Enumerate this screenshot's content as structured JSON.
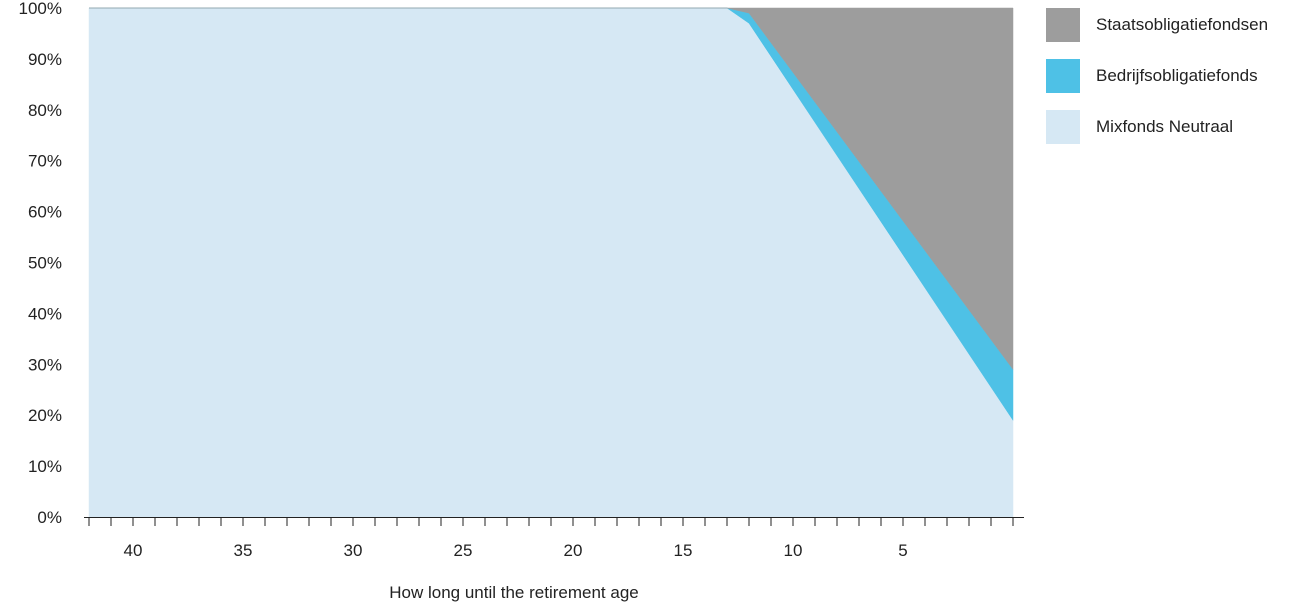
{
  "chart_data": {
    "type": "area",
    "stacked": true,
    "title": "",
    "xlabel": "How long until the retirement age",
    "ylabel": "",
    "xlim": [
      42,
      0
    ],
    "ylim": [
      0,
      100
    ],
    "x_ticks": [
      40,
      35,
      30,
      25,
      20,
      15,
      10,
      5
    ],
    "y_ticks": [
      0,
      10,
      20,
      30,
      40,
      50,
      60,
      70,
      80,
      90,
      100
    ],
    "y_tick_labels": [
      "0%",
      "10%",
      "20%",
      "30%",
      "40%",
      "50%",
      "60%",
      "70%",
      "80%",
      "90%",
      "100%"
    ],
    "x": [
      42,
      13,
      12,
      0
    ],
    "series": [
      {
        "name": "Mixfonds Neutraal",
        "color": "#d6e8f4",
        "values": [
          100,
          100,
          97,
          19
        ]
      },
      {
        "name": "Bedrijfsobligatiefonds",
        "color": "#4ec1e6",
        "values": [
          0,
          0,
          2,
          10
        ]
      },
      {
        "name": "Staatsobligatiefondsen",
        "color": "#9d9d9d",
        "values": [
          0,
          0,
          1,
          71
        ]
      }
    ],
    "legend": {
      "position": "right",
      "order": [
        "Staatsobligatiefondsen",
        "Bedrijfsobligatiefonds",
        "Mixfonds Neutraal"
      ]
    },
    "grid": false
  }
}
